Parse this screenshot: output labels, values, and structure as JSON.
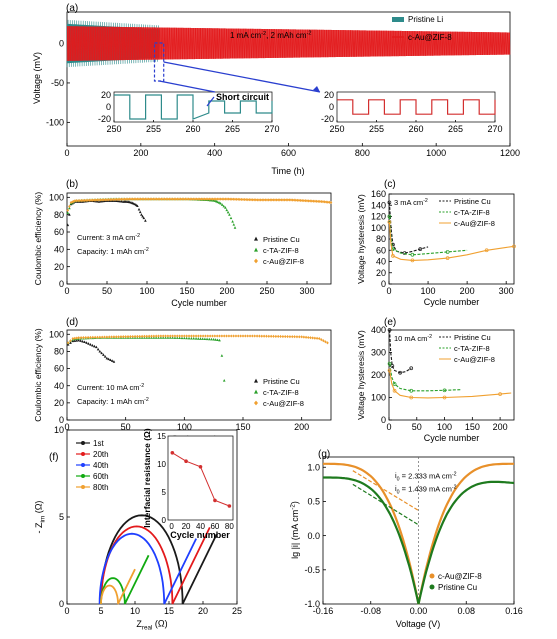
{
  "colors": {
    "pristine_li": "#2e8b8b",
    "au_zif": "#e31a1c",
    "pristine_cu": "#1a1a1a",
    "ta_zif": "#2aa02a",
    "au_zif_orange": "#f0a030",
    "eis": [
      "#1a1a1a",
      "#e31a1c",
      "#1f3fff",
      "#11aa11",
      "#f0a030"
    ],
    "inset_line": "#d32f2f",
    "tafel_orange": "#e8902a",
    "tafel_green": "#1e7a1e",
    "zoom_arrow": "#2a3fcf"
  },
  "panels": {
    "a": {
      "label": "(a)",
      "condition": "1 mA cm",
      "condition_sup": "-2",
      "condition_tail": ", 2 mAh cm",
      "condition_sup2": "-2",
      "inset_annotation": "Short circuit"
    },
    "b": {
      "label": "(b)",
      "current": "Current: 3 mA cm",
      "current_sup": "-2",
      "capacity": "Capacity: 1 mAh cm",
      "capacity_sup": "-2"
    },
    "c": {
      "label": "(c)",
      "condition": "3 mA cm",
      "condition_sup": "-2"
    },
    "d": {
      "label": "(d)",
      "current": "Current: 10 mA cm",
      "current_sup": "-2",
      "capacity": "Capacity: 1 mAh cm",
      "capacity_sup": "-2"
    },
    "e": {
      "label": "(e)",
      "condition": "10 mA cm",
      "condition_sup": "-2"
    },
    "f": {
      "label": "(f)"
    },
    "g": {
      "label": "(g)",
      "i0_au": "i",
      "i0_au_val": " = 2.333 mA cm",
      "i0_cu_val": " = 1.439 mA cm",
      "sub": "0",
      "sup": "-2"
    }
  },
  "chart_data": [
    {
      "id": "a",
      "type": "line",
      "xlabel": "Time (h)",
      "ylabel": "Voltage (mV)",
      "xlim": [
        0,
        1200
      ],
      "ylim": [
        -130,
        40
      ],
      "xticks": [
        0,
        200,
        400,
        600,
        800,
        1000,
        1200
      ],
      "yticks": [
        -100,
        -50,
        0
      ],
      "series": [
        {
          "name": "Pristine Li",
          "x_range": [
            0,
            250
          ],
          "amplitude": [
            25,
            18
          ]
        },
        {
          "name": "c-Au@ZIF-8",
          "x_range": [
            0,
            1200
          ],
          "amplitude": [
            22,
            14
          ]
        }
      ],
      "insets": [
        {
          "series": "Pristine Li",
          "xlim": [
            250,
            270
          ],
          "ylim": [
            -25,
            25
          ],
          "xticks": [
            250,
            255,
            260,
            265,
            270
          ],
          "yticks": [
            -20,
            0,
            20
          ],
          "amplitude": 20
        },
        {
          "series": "c-Au@ZIF-8",
          "xlim": [
            250,
            270
          ],
          "ylim": [
            -25,
            25
          ],
          "xticks": [
            250,
            255,
            260,
            265,
            270
          ],
          "yticks": [
            -20,
            0,
            20
          ],
          "amplitude": 12
        }
      ]
    },
    {
      "id": "b",
      "type": "scatter",
      "xlabel": "Cycle number",
      "ylabel": "Coulombic efficiency (%)",
      "xlim": [
        0,
        330
      ],
      "ylim": [
        0,
        105
      ],
      "xticks": [
        0,
        50,
        100,
        150,
        200,
        250,
        300
      ],
      "yticks": [
        0,
        20,
        40,
        60,
        80,
        100
      ],
      "series": [
        {
          "name": "Pristine Cu",
          "x": [
            1,
            5,
            10,
            20,
            30,
            40,
            50,
            60,
            70,
            75,
            80,
            85,
            88,
            90,
            93,
            96,
            98
          ],
          "y": [
            68,
            92,
            95,
            95,
            96,
            95,
            96,
            96,
            95,
            95,
            94,
            92,
            90,
            86,
            80,
            76,
            73
          ]
        },
        {
          "name": "c-TA-ZIF-8",
          "x": [
            1,
            5,
            10,
            30,
            60,
            90,
            120,
            150,
            175,
            185,
            192,
            198,
            203,
            207,
            210
          ],
          "y": [
            82,
            93,
            96,
            97,
            98,
            98,
            98,
            98,
            97,
            96,
            93,
            88,
            80,
            72,
            65
          ]
        },
        {
          "name": "c-Au@ZIF-8",
          "x": [
            1,
            5,
            10,
            40,
            80,
            120,
            160,
            200,
            240,
            280,
            300,
            320,
            330
          ],
          "y": [
            85,
            94,
            96,
            97,
            98,
            98,
            98,
            98,
            97,
            97,
            96,
            95,
            94
          ]
        }
      ]
    },
    {
      "id": "c",
      "type": "line",
      "xlabel": "Cycle number",
      "ylabel": "Voltage hysteresis (mV)",
      "xlim": [
        0,
        320
      ],
      "ylim": [
        0,
        160
      ],
      "xticks": [
        0,
        100,
        200,
        300
      ],
      "yticks": [
        0,
        20,
        40,
        60,
        80,
        100,
        120,
        140,
        160
      ],
      "series": [
        {
          "name": "Pristine Cu",
          "x": [
            1,
            5,
            10,
            20,
            40,
            60,
            80,
            100
          ],
          "y": [
            145,
            100,
            70,
            58,
            55,
            58,
            62,
            66
          ]
        },
        {
          "name": "c-TA-ZIF-8",
          "x": [
            1,
            5,
            10,
            30,
            60,
            100,
            150,
            200
          ],
          "y": [
            120,
            80,
            62,
            55,
            52,
            54,
            57,
            60
          ]
        },
        {
          "name": "c-Au@ZIF-8",
          "x": [
            1,
            5,
            10,
            30,
            60,
            100,
            150,
            200,
            250,
            300,
            320
          ],
          "y": [
            110,
            70,
            50,
            44,
            42,
            43,
            46,
            52,
            60,
            65,
            67
          ]
        }
      ]
    },
    {
      "id": "d",
      "type": "scatter",
      "xlabel": "Cycle number",
      "ylabel": "Coulombic efficiency (%)",
      "xlim": [
        0,
        225
      ],
      "ylim": [
        0,
        105
      ],
      "xticks": [
        0,
        50,
        100,
        150,
        200
      ],
      "yticks": [
        0,
        20,
        40,
        60,
        80,
        100
      ],
      "series": [
        {
          "name": "Pristine Cu",
          "x": [
            1,
            5,
            10,
            15,
            20,
            25,
            28,
            31,
            34,
            37,
            40
          ],
          "y": [
            88,
            92,
            93,
            91,
            88,
            85,
            80,
            76,
            72,
            70,
            68
          ]
        },
        {
          "name": "c-TA-ZIF-8",
          "x": [
            1,
            5,
            10,
            30,
            60,
            90,
            110,
            125,
            130,
            132,
            134
          ],
          "y": [
            90,
            94,
            95,
            96,
            96,
            96,
            95,
            94,
            93,
            75,
            46
          ]
        },
        {
          "name": "c-Au@ZIF-8",
          "x": [
            1,
            5,
            10,
            40,
            80,
            120,
            160,
            200,
            215,
            222
          ],
          "y": [
            90,
            95,
            96,
            97,
            98,
            98,
            98,
            97,
            95,
            90
          ]
        }
      ]
    },
    {
      "id": "e",
      "type": "line",
      "xlabel": "Cycle number",
      "ylabel": "Voltage hysteresis (mV)",
      "xlim": [
        0,
        225
      ],
      "ylim": [
        0,
        400
      ],
      "xticks": [
        0,
        50,
        100,
        150,
        200
      ],
      "yticks": [
        0,
        100,
        200,
        300,
        400
      ],
      "series": [
        {
          "name": "Pristine Cu",
          "x": [
            1,
            3,
            6,
            10,
            20,
            30,
            40
          ],
          "y": [
            400,
            300,
            240,
            220,
            210,
            215,
            230
          ]
        },
        {
          "name": "c-TA-ZIF-8",
          "x": [
            1,
            5,
            10,
            20,
            40,
            70,
            100,
            130
          ],
          "y": [
            250,
            190,
            160,
            140,
            130,
            130,
            132,
            135
          ]
        },
        {
          "name": "c-Au@ZIF-8",
          "x": [
            1,
            5,
            10,
            20,
            40,
            70,
            100,
            150,
            200,
            220
          ],
          "y": [
            220,
            160,
            130,
            110,
            100,
            98,
            100,
            105,
            115,
            120
          ]
        }
      ]
    },
    {
      "id": "f",
      "type": "line",
      "xlabel": "Z",
      "xlabel_sub": "real",
      "xlabel_unit": " (Ω)",
      "ylabel": "- Z",
      "ylabel_sub": "im",
      "ylabel_unit": " (Ω)",
      "xlim": [
        0,
        25
      ],
      "ylim": [
        0,
        10
      ],
      "xticks": [
        0,
        5,
        10,
        15,
        20,
        25
      ],
      "yticks": [
        0,
        5,
        10
      ],
      "series": [
        {
          "name": "1st",
          "start": 5.0,
          "diameter": 12.0,
          "tail_to": 22
        },
        {
          "name": "20th",
          "start": 5.0,
          "diameter": 10.5,
          "tail_to": 21
        },
        {
          "name": "40th",
          "start": 4.8,
          "diameter": 9.5,
          "tail_to": 19
        },
        {
          "name": "60th",
          "start": 5.0,
          "diameter": 3.5,
          "tail_to": 12
        },
        {
          "name": "80th",
          "start": 5.0,
          "diameter": 2.5,
          "tail_to": 10
        }
      ],
      "inset": {
        "xlabel": "Cycle number",
        "ylabel": "Interfacial resistance (Ω)",
        "xlim": [
          -5,
          85
        ],
        "ylim": [
          0,
          15
        ],
        "xticks": [
          0,
          20,
          40,
          60,
          80
        ],
        "yticks": [
          0,
          5,
          10,
          15
        ],
        "x": [
          1,
          20,
          40,
          60,
          80
        ],
        "y": [
          12,
          10.5,
          9.5,
          3.5,
          2.5
        ]
      }
    },
    {
      "id": "g",
      "type": "line",
      "xlabel": "Voltage (V)",
      "ylabel": "lg |i| (mA cm",
      "ylabel_sup": "-2",
      "ylabel_tail": ")",
      "xlim": [
        -0.16,
        0.16
      ],
      "ylim": [
        -1.0,
        1.15
      ],
      "xticks": [
        -0.16,
        -0.08,
        0.0,
        0.08,
        0.16
      ],
      "yticks": [
        -1.0,
        -0.5,
        0.0,
        0.5,
        1.0
      ],
      "xtick_labels": [
        "-0.16",
        "-0.08",
        "0.00",
        "0.08",
        "0.16"
      ],
      "yticks_labels": [
        "-1.0",
        "-0.5",
        "0.0",
        "0.5",
        "1.0"
      ],
      "series": [
        {
          "name": "c-Au@ZIF-8",
          "plateau": 1.05,
          "i0_lg": 0.368
        },
        {
          "name": "Pristine Cu",
          "plateau": 0.85,
          "i0_lg": 0.158
        }
      ]
    }
  ]
}
